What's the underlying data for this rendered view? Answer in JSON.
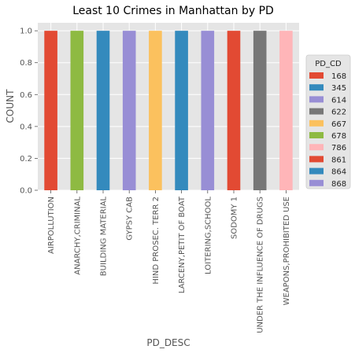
{
  "chart_data": {
    "type": "bar",
    "title": "Least 10 Crimes in Manhattan by PD",
    "xlabel": "PD_DESC",
    "ylabel": "COUNT",
    "ylim": [
      0,
      1.05
    ],
    "yticks": [
      "0.0",
      "0.2",
      "0.4",
      "0.6",
      "0.8",
      "1.0"
    ],
    "grid": true,
    "categories": [
      "AIRPOLLUTION",
      "ANARCHY,CRIMINAL",
      "BUILDING MATERIAL",
      "GYPSY CAB",
      "HIND PROSEC. TERR 2",
      "LARCENY,PETIT OF BOAT",
      "LOITERING,SCHOOL",
      "SODOMY 1",
      "UNDER THE INFLUENCE OF DRUGS",
      "WEAPONS,PROHIBITED USE"
    ],
    "values": [
      1,
      1,
      1,
      1,
      1,
      1,
      1,
      1,
      1,
      1
    ],
    "bar_colors": [
      "#E24A33",
      "#8EBA42",
      "#348ABD",
      "#988ED5",
      "#FBC15E",
      "#348ABD",
      "#988ED5",
      "#E24A33",
      "#777777",
      "#FFB5B8"
    ],
    "legend": {
      "title": "PD_CD",
      "placement": "right",
      "entries": [
        {
          "label": "168",
          "color": "#E24A33"
        },
        {
          "label": "345",
          "color": "#348ABD"
        },
        {
          "label": "614",
          "color": "#988ED5"
        },
        {
          "label": "622",
          "color": "#777777"
        },
        {
          "label": "667",
          "color": "#FBC15E"
        },
        {
          "label": "678",
          "color": "#8EBA42"
        },
        {
          "label": "786",
          "color": "#FFB5B8"
        },
        {
          "label": "861",
          "color": "#E24A33"
        },
        {
          "label": "864",
          "color": "#348ABD"
        },
        {
          "label": "868",
          "color": "#988ED5"
        }
      ]
    }
  }
}
